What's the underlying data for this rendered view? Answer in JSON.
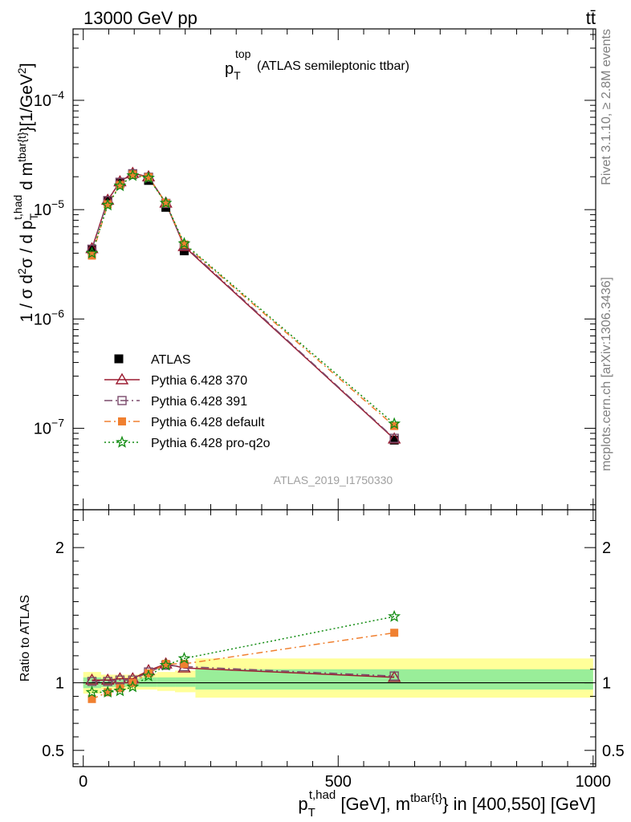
{
  "header": {
    "left": "13000 GeV pp",
    "right": "tt̄"
  },
  "side_labels": {
    "rivet": "Rivet 3.1.10, ≥ 2.8M events",
    "mcplots": "mcplots.cern.ch [arXiv:1306.3436]"
  },
  "watermark": "ATLAS_2019_I1750330",
  "chart_data": [
    {
      "panel": "main",
      "type": "line",
      "title_main": "p",
      "title_sub": "T",
      "title_sup": "top",
      "title_rest": "(ATLAS semileptonic ttbar)",
      "ylabel": "1 / σ d²σ / d p_T^{t,had} d m^{tbar{t}} [1/GeV²]",
      "yscale": "log",
      "ylim": [
        1.8e-08,
        0.00045
      ],
      "xlim": [
        -20,
        1005
      ],
      "ytick_labels": [
        {
          "value": 1e-07,
          "mant": "10",
          "exp": "−7"
        },
        {
          "value": 1e-06,
          "mant": "10",
          "exp": "−6"
        },
        {
          "value": 1e-05,
          "mant": "10",
          "exp": "−5"
        },
        {
          "value": 0.0001,
          "mant": "10",
          "exp": "−4"
        }
      ],
      "x": [
        17,
        48,
        72,
        97,
        128,
        162,
        198,
        610
      ],
      "data": {
        "name": "ATLAS",
        "values": [
          4.3e-06,
          1.2e-05,
          1.75e-05,
          2.1e-05,
          1.85e-05,
          1.05e-05,
          4.2e-06,
          7.8e-08
        ]
      },
      "series": [
        {
          "name": "Pythia 6.428 370",
          "color": "#9b1b30",
          "dash": "",
          "marker": "triangle",
          "values": [
            4.4e-06,
            1.22e-05,
            1.8e-05,
            2.15e-05,
            2e-05,
            1.15e-05,
            4.6e-06,
            8e-08
          ]
        },
        {
          "name": "Pythia 6.428 391",
          "color": "#7b4a6b",
          "dash": "10,4,2,4",
          "marker": "square",
          "values": [
            4.35e-06,
            1.21e-05,
            1.78e-05,
            2.13e-05,
            1.98e-05,
            1.14e-05,
            4.7e-06,
            8.1e-08
          ]
        },
        {
          "name": "Pythia 6.428 default",
          "color": "#f08030",
          "dash": "8,4,2,4",
          "marker": "filled-square",
          "values": [
            3.8e-06,
            1.12e-05,
            1.68e-05,
            2.1e-05,
            1.98e-05,
            1.15e-05,
            4.8e-06,
            1.05e-07
          ]
        },
        {
          "name": "Pythia 6.428 pro-q2o",
          "color": "#128c12",
          "dash": "2,3",
          "marker": "star",
          "values": [
            4e-06,
            1.1e-05,
            1.65e-05,
            2.05e-05,
            1.95e-05,
            1.15e-05,
            4.9e-06,
            1.1e-07
          ]
        }
      ]
    },
    {
      "panel": "ratio",
      "type": "line",
      "ylabel": "Ratio to ATLAS",
      "ylim": [
        0.38,
        2.28
      ],
      "xlim": [
        -20,
        1005
      ],
      "yticks": [
        0.5,
        1,
        2
      ],
      "ytick_labels": [
        "0.5",
        "1",
        "2"
      ],
      "xticks": [
        0,
        500,
        1000
      ],
      "xtick_labels": [
        "0",
        "500",
        "1000"
      ],
      "xlabel_main": "p",
      "xlabel_sub": "T",
      "xlabel_sup": "t,had",
      "xlabel_mid": " [GeV], m",
      "xlabel_sup2": "tbar{t}",
      "xlabel_end": "} in [400,550] [GeV]",
      "bands": [
        {
          "x0": 0,
          "x1": 35,
          "green": [
            0.96,
            1.04
          ],
          "yellow": [
            0.92,
            1.08
          ]
        },
        {
          "x0": 35,
          "x1": 60,
          "green": [
            0.97,
            1.03
          ],
          "yellow": [
            0.95,
            1.06
          ]
        },
        {
          "x0": 60,
          "x1": 85,
          "green": [
            0.97,
            1.03
          ],
          "yellow": [
            0.95,
            1.06
          ]
        },
        {
          "x0": 85,
          "x1": 110,
          "green": [
            0.97,
            1.03
          ],
          "yellow": [
            0.95,
            1.06
          ]
        },
        {
          "x0": 110,
          "x1": 145,
          "green": [
            0.97,
            1.04
          ],
          "yellow": [
            0.95,
            1.07
          ]
        },
        {
          "x0": 145,
          "x1": 180,
          "green": [
            0.97,
            1.04
          ],
          "yellow": [
            0.94,
            1.08
          ]
        },
        {
          "x0": 180,
          "x1": 220,
          "green": [
            0.97,
            1.04
          ],
          "yellow": [
            0.93,
            1.09
          ]
        },
        {
          "x0": 220,
          "x1": 1000,
          "green": [
            0.95,
            1.1
          ],
          "yellow": [
            0.89,
            1.18
          ]
        }
      ],
      "x": [
        17,
        48,
        72,
        97,
        128,
        162,
        198,
        610
      ],
      "series": [
        {
          "name": "Pythia 6.428 370",
          "color": "#9b1b30",
          "dash": "",
          "marker": "triangle",
          "values": [
            1.02,
            1.02,
            1.03,
            1.03,
            1.09,
            1.14,
            1.11,
            1.04
          ]
        },
        {
          "name": "Pythia 6.428 391",
          "color": "#7b4a6b",
          "dash": "10,4,2,4",
          "marker": "square",
          "values": [
            1.01,
            1.01,
            1.02,
            1.02,
            1.08,
            1.13,
            1.12,
            1.05
          ]
        },
        {
          "name": "Pythia 6.428 default",
          "color": "#f08030",
          "dash": "8,4,2,4",
          "marker": "filled-square",
          "values": [
            0.88,
            0.93,
            0.96,
            1.0,
            1.07,
            1.14,
            1.14,
            1.37
          ]
        },
        {
          "name": "Pythia 6.428 pro-q2o",
          "color": "#128c12",
          "dash": "2,3",
          "marker": "star",
          "values": [
            0.93,
            0.93,
            0.94,
            0.97,
            1.05,
            1.13,
            1.18,
            1.49
          ]
        }
      ]
    }
  ]
}
